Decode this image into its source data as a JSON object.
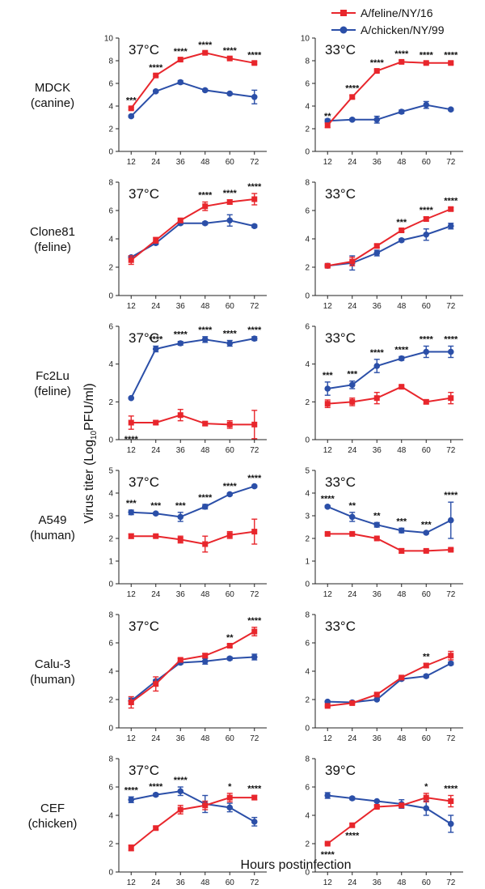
{
  "legend": {
    "position": "top-right",
    "feline": {
      "label": "A/feline/NY/16",
      "color": "#e8262c"
    },
    "chicken": {
      "label": "A/chicken/NY/99",
      "color": "#2b4fa8"
    }
  },
  "xlabel": "Hours postinfection",
  "ylabel_parts": {
    "pre": "Virus titer (Log",
    "sub": "10",
    "post": "PFU/ml)"
  },
  "chart_data": {
    "type": "line",
    "x": [
      12,
      24,
      36,
      48,
      60,
      72
    ],
    "xlim": [
      6,
      78
    ],
    "rows": [
      {
        "cell": "MDCK",
        "host": "(canine)",
        "ylim": [
          0,
          10
        ],
        "yticks": [
          0,
          2,
          4,
          6,
          8,
          10
        ],
        "panels": [
          {
            "temp": "37°C",
            "feline": [
              3.8,
              6.7,
              8.1,
              8.7,
              8.2,
              7.8
            ],
            "feline_err": [
              0.1,
              0.1,
              0.1,
              0.1,
              0.1,
              0.1
            ],
            "chicken": [
              3.1,
              5.3,
              6.1,
              5.4,
              5.1,
              4.8
            ],
            "chicken_err": [
              0.1,
              0.1,
              0.15,
              0.1,
              0.1,
              0.6
            ],
            "sig": [
              "***",
              "****",
              "****",
              "****",
              "****",
              "****"
            ],
            "sig_on": "feline"
          },
          {
            "temp": "33°C",
            "feline": [
              2.3,
              4.8,
              7.1,
              7.9,
              7.8,
              7.8
            ],
            "feline_err": [
              0.2,
              0.15,
              0.1,
              0.1,
              0.1,
              0.1
            ],
            "chicken": [
              2.7,
              2.8,
              2.8,
              3.5,
              4.1,
              3.7
            ],
            "chicken_err": [
              0.15,
              0.1,
              0.3,
              0.15,
              0.3,
              0.1
            ],
            "sig": [
              "**",
              "****",
              "****",
              "****",
              "****",
              "****"
            ],
            "sig_on": "feline"
          }
        ]
      },
      {
        "cell": "Clone81",
        "host": "(feline)",
        "ylim": [
          0,
          8
        ],
        "yticks": [
          0,
          2,
          4,
          6,
          8
        ],
        "panels": [
          {
            "temp": "37°C",
            "feline": [
              2.5,
              3.9,
              5.3,
              6.3,
              6.6,
              6.8
            ],
            "feline_err": [
              0.3,
              0.2,
              0.15,
              0.3,
              0.15,
              0.4
            ],
            "chicken": [
              2.7,
              3.7,
              5.1,
              5.1,
              5.3,
              4.9
            ],
            "chicken_err": [
              0.1,
              0.1,
              0.1,
              0.1,
              0.4,
              0.1
            ],
            "sig": [
              "",
              "",
              "",
              "****",
              "****",
              "****"
            ],
            "sig_on": "feline"
          },
          {
            "temp": "33°C",
            "feline": [
              2.1,
              2.4,
              3.5,
              4.6,
              5.4,
              6.1
            ],
            "feline_err": [
              0.1,
              0.3,
              0.1,
              0.1,
              0.15,
              0.1
            ],
            "chicken": [
              2.1,
              2.3,
              3.0,
              3.9,
              4.3,
              4.9
            ],
            "chicken_err": [
              0.1,
              0.5,
              0.2,
              0.1,
              0.4,
              0.2
            ],
            "sig": [
              "",
              "",
              "",
              "***",
              "****",
              "****"
            ],
            "sig_on": "feline"
          }
        ]
      },
      {
        "cell": "Fc2Lu",
        "host": "(feline)",
        "ylim": [
          0,
          6
        ],
        "yticks": [
          0,
          2,
          4,
          6
        ],
        "panels": [
          {
            "temp": "37°C",
            "feline": [
              0.9,
              0.9,
              1.3,
              0.85,
              0.8,
              0.8
            ],
            "feline_err": [
              0.35,
              0.1,
              0.3,
              0.1,
              0.2,
              0.75
            ],
            "chicken": [
              2.2,
              4.8,
              5.1,
              5.3,
              5.1,
              5.35
            ],
            "chicken_err": [
              0.05,
              0.15,
              0.1,
              0.15,
              0.15,
              0.1
            ],
            "sig": [
              "****",
              "****",
              "****",
              "****",
              "****",
              "****"
            ],
            "sig_on": "chicken",
            "sig_first_below": true
          },
          {
            "temp": "33°C",
            "feline": [
              1.9,
              2.0,
              2.2,
              2.8,
              2.0,
              2.2
            ],
            "feline_err": [
              0.2,
              0.2,
              0.3,
              0.05,
              0.1,
              0.3
            ],
            "chicken": [
              2.7,
              2.9,
              3.9,
              4.3,
              4.65,
              4.65
            ],
            "chicken_err": [
              0.35,
              0.2,
              0.35,
              0.1,
              0.3,
              0.3
            ],
            "sig": [
              "***",
              "***",
              "****",
              "****",
              "****",
              "****"
            ],
            "sig_on": "chicken"
          }
        ]
      },
      {
        "cell": "A549",
        "host": "(human)",
        "ylim": [
          0,
          5
        ],
        "yticks": [
          0,
          1,
          2,
          3,
          4,
          5
        ],
        "panels": [
          {
            "temp": "37°C",
            "feline": [
              2.1,
              2.1,
              1.95,
              1.75,
              2.15,
              2.3
            ],
            "feline_err": [
              0.1,
              0.05,
              0.15,
              0.35,
              0.15,
              0.55
            ],
            "chicken": [
              3.15,
              3.1,
              2.95,
              3.4,
              3.95,
              4.3
            ],
            "chicken_err": [
              0.1,
              0.05,
              0.2,
              0.1,
              0.05,
              0.05
            ],
            "sig": [
              "***",
              "***",
              "***",
              "****",
              "****",
              "****"
            ],
            "sig_on": "chicken"
          },
          {
            "temp": "33°C",
            "feline": [
              2.2,
              2.2,
              2.0,
              1.45,
              1.45,
              1.5
            ],
            "feline_err": [
              0.05,
              0.05,
              0.05,
              0.1,
              0.05,
              0.05
            ],
            "chicken": [
              3.4,
              2.95,
              2.6,
              2.35,
              2.25,
              2.8
            ],
            "chicken_err": [
              0.05,
              0.2,
              0.1,
              0.1,
              0.05,
              0.8
            ],
            "sig": [
              "****",
              "**",
              "**",
              "***",
              "***",
              "****"
            ],
            "sig_on": "chicken"
          }
        ]
      },
      {
        "cell": "Calu-3",
        "host": "(human)",
        "ylim": [
          0,
          8
        ],
        "yticks": [
          0,
          2,
          4,
          6,
          8
        ],
        "panels": [
          {
            "temp": "37°C",
            "feline": [
              1.8,
              3.1,
              4.8,
              5.1,
              5.8,
              6.8
            ],
            "feline_err": [
              0.4,
              0.5,
              0.1,
              0.15,
              0.1,
              0.3
            ],
            "chicken": [
              1.9,
              3.3,
              4.6,
              4.7,
              4.9,
              5.0
            ],
            "chicken_err": [
              0.2,
              0.1,
              0.1,
              0.2,
              0.1,
              0.2
            ],
            "sig": [
              "",
              "",
              "",
              "",
              "**",
              "****"
            ],
            "sig_on": "feline"
          },
          {
            "temp": "33°C",
            "feline": [
              1.55,
              1.75,
              2.35,
              3.55,
              4.4,
              5.1
            ],
            "feline_err": [
              0.05,
              0.05,
              0.1,
              0.05,
              0.15,
              0.3
            ],
            "chicken": [
              1.85,
              1.8,
              2.0,
              3.45,
              3.65,
              4.55
            ],
            "chicken_err": [
              0.05,
              0.05,
              0.05,
              0.1,
              0.1,
              0.1
            ],
            "sig": [
              "",
              "",
              "",
              "",
              "**",
              ""
            ],
            "sig_on": "feline"
          }
        ]
      },
      {
        "cell": "CEF",
        "host": "(chicken)",
        "ylim": [
          0,
          8
        ],
        "yticks": [
          0,
          2,
          4,
          6,
          8
        ],
        "panels": [
          {
            "temp": "37°C",
            "feline": [
              1.7,
              3.1,
              4.4,
              4.7,
              5.25,
              5.25
            ],
            "feline_err": [
              0.2,
              0.1,
              0.3,
              0.3,
              0.3,
              0.15
            ],
            "chicken": [
              5.1,
              5.45,
              5.7,
              4.8,
              4.55,
              3.55
            ],
            "chicken_err": [
              0.2,
              0.1,
              0.3,
              0.6,
              0.3,
              0.3
            ],
            "sig": [
              "****",
              "****",
              "****",
              "",
              "*",
              "****"
            ],
            "sig_on": "max"
          },
          {
            "temp": "39°C",
            "feline": [
              2.0,
              3.3,
              4.6,
              4.7,
              5.25,
              5.0
            ],
            "feline_err": [
              0.05,
              0.1,
              0.1,
              0.1,
              0.3,
              0.4
            ],
            "chicken": [
              5.4,
              5.2,
              5.0,
              4.8,
              4.5,
              3.4
            ],
            "chicken_err": [
              0.2,
              0.1,
              0.05,
              0.3,
              0.5,
              0.6
            ],
            "sig": [
              "****",
              "****",
              "",
              "",
              "*",
              "****"
            ],
            "sig_on": "max",
            "sig_first_below": true,
            "sig_second_below": true
          }
        ]
      }
    ]
  }
}
